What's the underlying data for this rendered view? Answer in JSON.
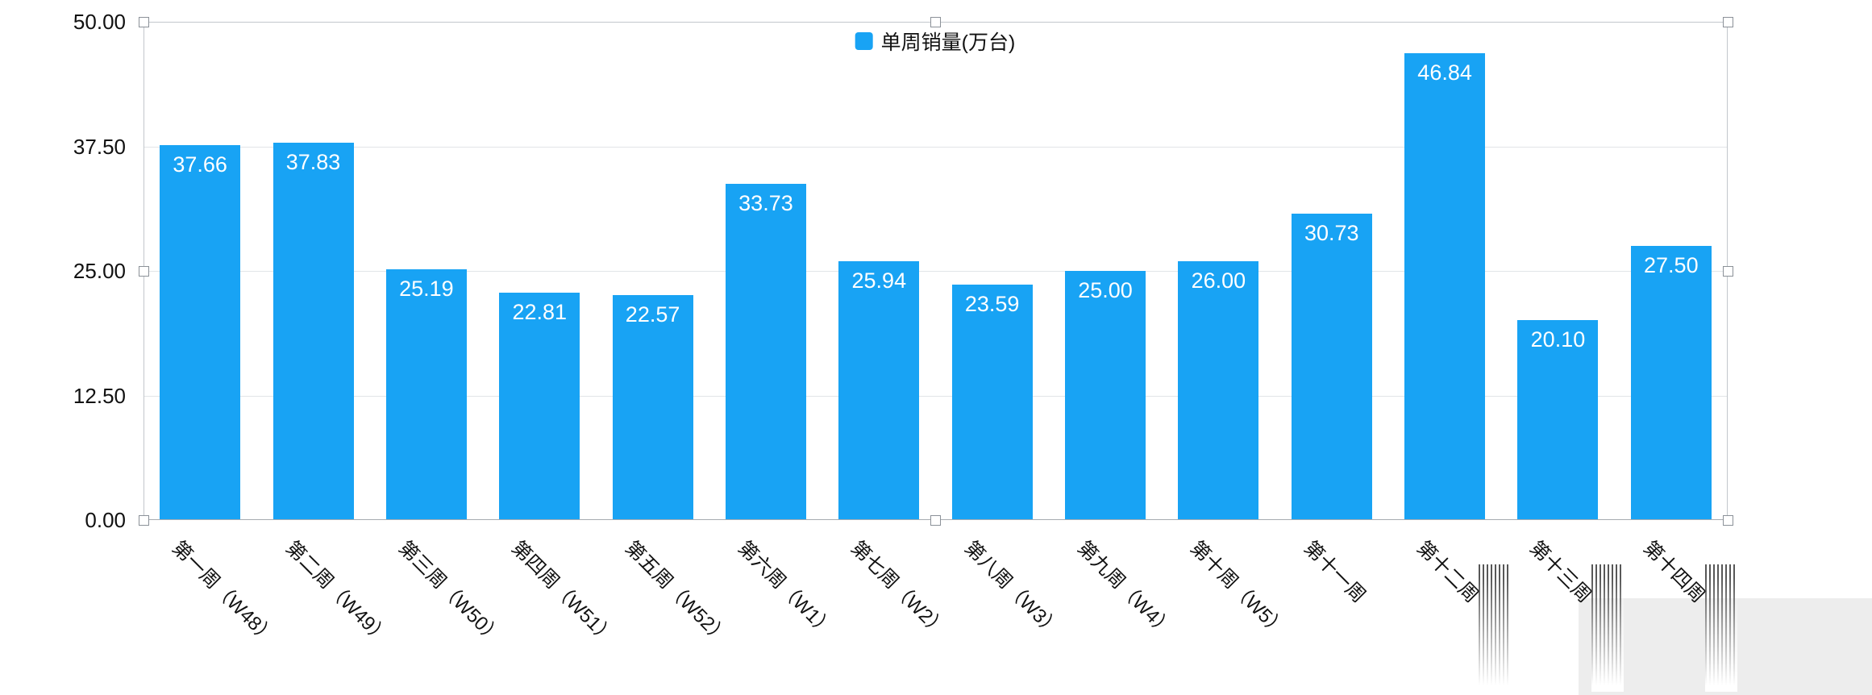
{
  "chart_data": {
    "type": "bar",
    "title": "",
    "legend_label": "单周销量(万台)",
    "legend_position": "top-center",
    "categories": [
      "第一周（W48）",
      "第二周（W49）",
      "第三周（W50）",
      "第四周（W51）",
      "第五周（W52）",
      "第六周（W1）",
      "第七周（W2）",
      "第八周（W3）",
      "第九周（W4）",
      "第十周（W5）",
      "第十一周",
      "第十二周",
      "第十三周",
      "第十四周"
    ],
    "values": [
      37.66,
      37.83,
      25.19,
      22.81,
      22.57,
      33.73,
      25.94,
      23.59,
      25.0,
      26.0,
      30.73,
      46.84,
      20.1,
      27.5
    ],
    "value_labels": [
      "37.66",
      "37.83",
      "25.19",
      "22.81",
      "22.57",
      "33.73",
      "25.94",
      "23.59",
      "25.00",
      "26.00",
      "30.73",
      "46.84",
      "20.10",
      "27.50"
    ],
    "xlabel": "",
    "ylabel": "",
    "ylim": [
      0,
      50
    ],
    "yticks": [
      {
        "value": 50,
        "label": "50.00"
      },
      {
        "value": 37.5,
        "label": "37.50"
      },
      {
        "value": 25,
        "label": "25.00"
      },
      {
        "value": 12.5,
        "label": "12.50"
      },
      {
        "value": 0,
        "label": "0.00"
      }
    ],
    "grid": true,
    "bar_color": "#18a3f4",
    "selected": true
  }
}
